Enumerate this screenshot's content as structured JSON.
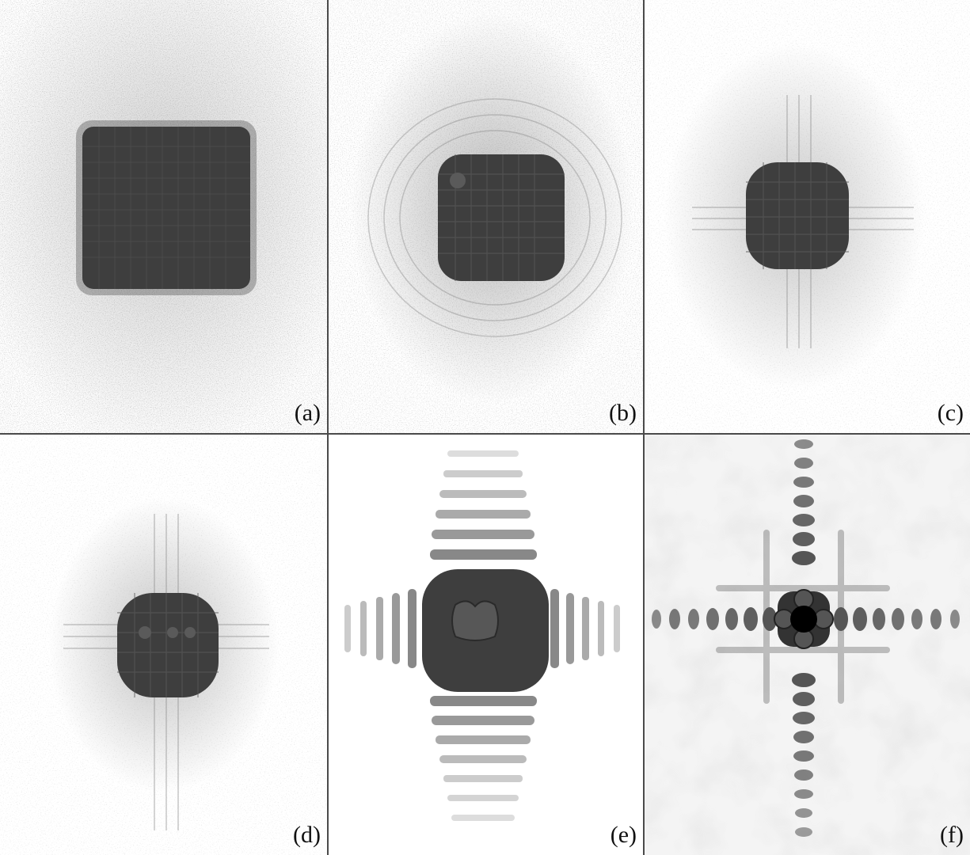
{
  "panels": [
    {
      "label": "(a)",
      "pattern": "speckled-square"
    },
    {
      "label": "(b)",
      "pattern": "speckled-square-with-fringes"
    },
    {
      "label": "(c)",
      "pattern": "rounded-square-with-fringes"
    },
    {
      "label": "(d)",
      "pattern": "small-blob-with-fringes"
    },
    {
      "label": "(e)",
      "pattern": "cross-shaped-fringes"
    },
    {
      "label": "(f)",
      "pattern": "diffraction-cross-with-dark-center"
    }
  ],
  "colors": {
    "background": "#ffffff",
    "divider": "#4a4a4a",
    "dark": "#3a3a3a",
    "center": "#000000"
  }
}
